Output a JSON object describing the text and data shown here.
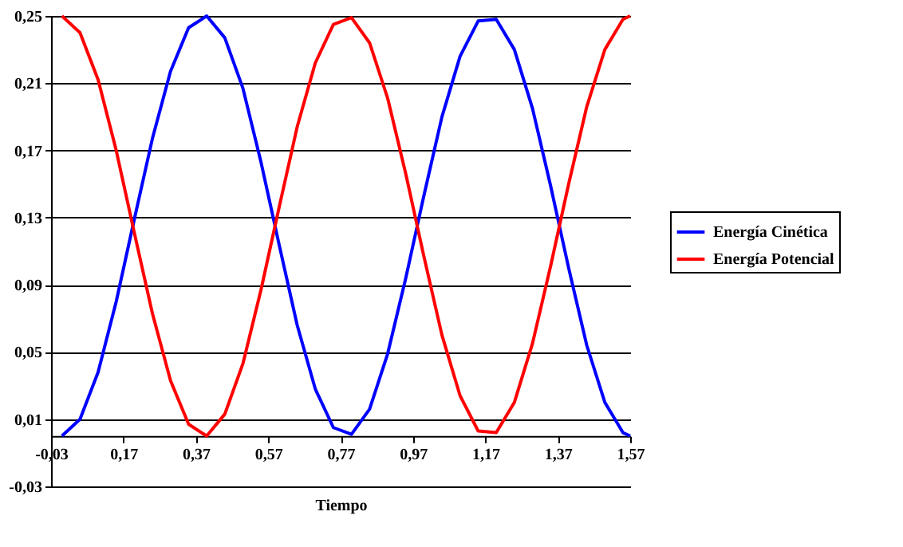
{
  "chart_data": {
    "type": "line",
    "xlabel": "Tiempo",
    "x": [
      0,
      0.05,
      0.1,
      0.15,
      0.2,
      0.25,
      0.3,
      0.35,
      0.4,
      0.45,
      0.5,
      0.55,
      0.6,
      0.65,
      0.7,
      0.75,
      0.8,
      0.85,
      0.9,
      0.95,
      1.0,
      1.05,
      1.1,
      1.15,
      1.2,
      1.25,
      1.3,
      1.35,
      1.4,
      1.45,
      1.5,
      1.55,
      1.57
    ],
    "series": [
      {
        "name": "Energía Cinética",
        "color": "#0000ff",
        "values": [
          0,
          0.01,
          0.038,
          0.08,
          0.129,
          0.177,
          0.217,
          0.243,
          0.25,
          0.237,
          0.207,
          0.163,
          0.114,
          0.066,
          0.028,
          0.005,
          0.001,
          0.016,
          0.049,
          0.094,
          0.143,
          0.19,
          0.226,
          0.247,
          0.248,
          0.23,
          0.195,
          0.149,
          0.1,
          0.054,
          0.02,
          0.002,
          0
        ]
      },
      {
        "name": "Energía Potencial",
        "color": "#ff0000",
        "values": [
          0.25,
          0.24,
          0.212,
          0.17,
          0.121,
          0.073,
          0.033,
          0.007,
          0,
          0.013,
          0.043,
          0.087,
          0.136,
          0.184,
          0.222,
          0.245,
          0.249,
          0.234,
          0.201,
          0.156,
          0.107,
          0.06,
          0.024,
          0.003,
          0.002,
          0.02,
          0.055,
          0.101,
          0.15,
          0.196,
          0.23,
          0.248,
          0.25
        ]
      }
    ],
    "xlim": [
      -0.03,
      1.57
    ],
    "xticks": [
      {
        "value": -0.03,
        "label": "-0,03"
      },
      {
        "value": 0.17,
        "label": "0,17"
      },
      {
        "value": 0.37,
        "label": "0,37"
      },
      {
        "value": 0.57,
        "label": "0,57"
      },
      {
        "value": 0.77,
        "label": "0,77"
      },
      {
        "value": 0.97,
        "label": "0,97"
      },
      {
        "value": 1.17,
        "label": "1,17"
      },
      {
        "value": 1.37,
        "label": "1,37"
      },
      {
        "value": 1.57,
        "label": "1,57"
      }
    ],
    "ylim": [
      -0.03,
      0.25
    ],
    "yticks": [
      {
        "value": -0.03,
        "label": "-0,03"
      },
      {
        "value": 0.01,
        "label": "0,01"
      },
      {
        "value": 0.05,
        "label": "0,05"
      },
      {
        "value": 0.09,
        "label": "0,09"
      },
      {
        "value": 0.13,
        "label": "0,13"
      },
      {
        "value": 0.17,
        "label": "0,17"
      },
      {
        "value": 0.21,
        "label": "0,21"
      },
      {
        "value": 0.25,
        "label": "0,25"
      }
    ],
    "grid": "y",
    "legend": "right",
    "marker": "none",
    "line_style": "solid"
  }
}
